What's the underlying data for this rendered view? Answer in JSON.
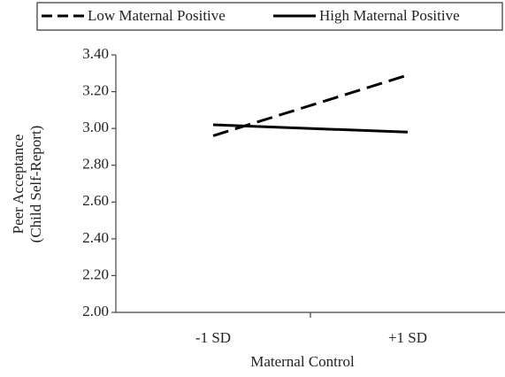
{
  "chart_data": {
    "type": "line",
    "categories": [
      "-1 SD",
      "+1 SD"
    ],
    "series": [
      {
        "name": "Low Maternal Positive",
        "color": "#000000",
        "line_style": "dashed",
        "values": [
          2.96,
          3.29
        ]
      },
      {
        "name": "High Maternal Positive",
        "color": "#000000",
        "line_style": "solid",
        "values": [
          3.02,
          2.98
        ]
      }
    ],
    "ylim": [
      2.0,
      3.4
    ],
    "yticks": [
      {
        "value": 2.0,
        "label": "2.00"
      },
      {
        "value": 2.2,
        "label": "2.20"
      },
      {
        "value": 2.4,
        "label": "2.40"
      },
      {
        "value": 2.6,
        "label": "2.60"
      },
      {
        "value": 2.8,
        "label": "2.80"
      },
      {
        "value": 3.0,
        "label": "3.00"
      },
      {
        "value": 3.2,
        "label": "3.20"
      },
      {
        "value": 3.4,
        "label": "3.40"
      }
    ],
    "x_label": "Maternal Control",
    "y_label": [
      "Peer Acceptance",
      "(Child Self-Report)"
    ],
    "legend": "top",
    "grid": false
  }
}
